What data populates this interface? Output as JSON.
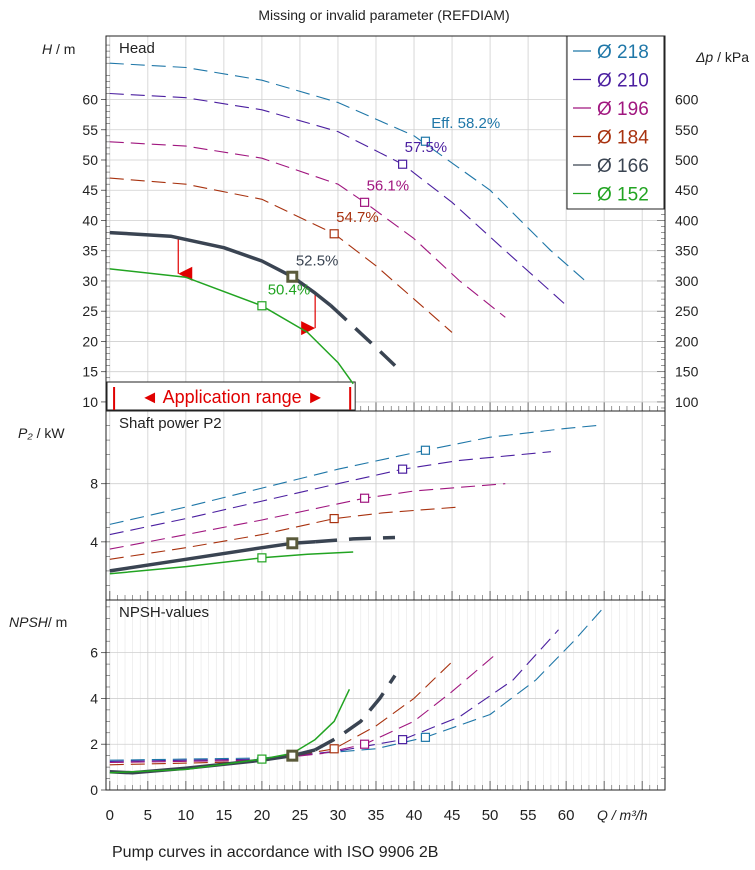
{
  "header": {
    "message": "Missing or invalid parameter (REFDIAM)"
  },
  "footer": {
    "caption": "Pump curves in accordance with ISO 9906 2B"
  },
  "axes": {
    "x_label": "Q / m³/h",
    "head_label_var": "H",
    "head_label_unit": " / m",
    "dp_label_var": "Δp",
    "dp_label_unit": " / kPa",
    "power_label_var": "P₂",
    "power_label_unit": " / kW",
    "npsh_label_var": "NPSH",
    "npsh_label_unit": "/ m"
  },
  "chart_data": {
    "type": "line",
    "colors": {
      "218": "#1f77a8",
      "210": "#4b1fa0",
      "196": "#a0167f",
      "184": "#a8320f",
      "166": "#3a4452",
      "152": "#22a422"
    },
    "legend": [
      {
        "key": "218",
        "label": "Ø 218"
      },
      {
        "key": "210",
        "label": "Ø 210"
      },
      {
        "key": "196",
        "label": "Ø 196"
      },
      {
        "key": "184",
        "label": "Ø 184"
      },
      {
        "key": "166",
        "label": "Ø 166"
      },
      {
        "key": "152",
        "label": "Ø 152"
      }
    ],
    "panels": [
      {
        "id": "head",
        "title": "Head",
        "x_range": [
          -0.5,
          73
        ],
        "y_range": [
          8.5,
          70.5
        ],
        "y_ticks": [
          10,
          15,
          20,
          25,
          30,
          35,
          40,
          45,
          50,
          55,
          60
        ],
        "y2_ticks": [
          100,
          150,
          200,
          250,
          300,
          350,
          400,
          450,
          500,
          550,
          600
        ],
        "series": [
          {
            "key": "218",
            "dashed": true,
            "width": 1.1,
            "points": [
              [
                0,
                66
              ],
              [
                10,
                65.3
              ],
              [
                20,
                63.2
              ],
              [
                30,
                59.5
              ],
              [
                40,
                54
              ],
              [
                50,
                45
              ],
              [
                58,
                35
              ],
              [
                63,
                29.5
              ]
            ]
          },
          {
            "key": "210",
            "dashed": true,
            "width": 1.1,
            "points": [
              [
                0,
                61
              ],
              [
                10,
                60.3
              ],
              [
                20,
                58.3
              ],
              [
                30,
                54.7
              ],
              [
                38.5,
                49.3
              ],
              [
                45,
                43
              ],
              [
                52,
                35
              ],
              [
                60,
                26
              ]
            ]
          },
          {
            "key": "196",
            "dashed": true,
            "width": 1.1,
            "points": [
              [
                0,
                53
              ],
              [
                10,
                52.3
              ],
              [
                20,
                50.3
              ],
              [
                30,
                46
              ],
              [
                33.5,
                43
              ],
              [
                40,
                37
              ],
              [
                46,
                30
              ],
              [
                52,
                24
              ]
            ]
          },
          {
            "key": "184",
            "dashed": true,
            "width": 1.1,
            "points": [
              [
                0,
                47
              ],
              [
                10,
                46
              ],
              [
                20,
                43.5
              ],
              [
                29.5,
                37.8
              ],
              [
                35,
                32.5
              ],
              [
                40,
                27
              ],
              [
                45,
                21.5
              ]
            ]
          },
          {
            "key": "166",
            "dashed": false,
            "width": 3.5,
            "points": [
              [
                0,
                38
              ],
              [
                8,
                37.4
              ],
              [
                15,
                35.5
              ],
              [
                20,
                33.3
              ],
              [
                24,
                30.7
              ],
              [
                27,
                28
              ],
              [
                29,
                26
              ]
            ]
          },
          {
            "key": "166",
            "dashed": true,
            "width": 3.5,
            "points": [
              [
                29,
                26
              ],
              [
                32,
                22.5
              ],
              [
                35,
                19
              ],
              [
                37.5,
                16
              ]
            ]
          },
          {
            "key": "152",
            "dashed": false,
            "width": 1.5,
            "points": [
              [
                0,
                32
              ],
              [
                10,
                30.6
              ],
              [
                20,
                25.9
              ],
              [
                26,
                21.5
              ],
              [
                30,
                16.5
              ],
              [
                32,
                13
              ]
            ]
          }
        ],
        "markers": [
          {
            "key": "218",
            "x": 41.5,
            "y": 53.1
          },
          {
            "key": "210",
            "x": 38.5,
            "y": 49.3
          },
          {
            "key": "196",
            "x": 33.5,
            "y": 43
          },
          {
            "key": "184",
            "x": 29.5,
            "y": 37.8
          },
          {
            "key": "166",
            "x": 24,
            "y": 30.7,
            "bold": true
          },
          {
            "key": "152",
            "x": 20,
            "y": 25.9
          }
        ],
        "efficiency_labels": [
          {
            "key": "218",
            "text": "Eff.  58.2%",
            "x": 42,
            "y": 55
          },
          {
            "key": "210",
            "text": "57.5%",
            "x": 38.5,
            "y": 51
          },
          {
            "key": "196",
            "text": "56.1%",
            "x": 33.5,
            "y": 44.6
          },
          {
            "key": "184",
            "text": "54.7%",
            "x": 29.5,
            "y": 39.4
          },
          {
            "key": "166",
            "text": "52.5%",
            "x": 24.2,
            "y": 32.2
          },
          {
            "key": "152",
            "text": "50.4%",
            "x": 20.5,
            "y": 27.4
          }
        ],
        "application_range": {
          "label": "◄ Application range ►",
          "x_min": 0.3,
          "x_max": 32
        },
        "range_markers": [
          {
            "x": 9,
            "y_top": 37.3,
            "y_bottom": 31.2
          },
          {
            "x": 27,
            "y_top": 27.9,
            "y_bottom": 22.2
          }
        ]
      },
      {
        "id": "power",
        "title": "Shaft power P2",
        "x_range": [
          -0.5,
          73
        ],
        "y_range": [
          0,
          13
        ],
        "y_ticks": [
          4,
          8
        ],
        "series": [
          {
            "key": "218",
            "dashed": true,
            "width": 1.1,
            "points": [
              [
                0,
                5.2
              ],
              [
                10,
                6.4
              ],
              [
                20,
                7.7
              ],
              [
                30,
                9
              ],
              [
                41.5,
                10.3
              ],
              [
                50,
                11.2
              ],
              [
                60,
                11.8
              ],
              [
                64,
                12
              ]
            ]
          },
          {
            "key": "210",
            "dashed": true,
            "width": 1.1,
            "points": [
              [
                0,
                4.5
              ],
              [
                10,
                5.6
              ],
              [
                20,
                6.8
              ],
              [
                30,
                8
              ],
              [
                38.5,
                9
              ],
              [
                46,
                9.6
              ],
              [
                58,
                10.2
              ]
            ]
          },
          {
            "key": "196",
            "dashed": true,
            "width": 1.1,
            "points": [
              [
                0,
                3.5
              ],
              [
                10,
                4.5
              ],
              [
                20,
                5.5
              ],
              [
                33.5,
                7
              ],
              [
                40,
                7.5
              ],
              [
                52,
                8
              ]
            ]
          },
          {
            "key": "184",
            "dashed": true,
            "width": 1.1,
            "points": [
              [
                0,
                2.8
              ],
              [
                10,
                3.6
              ],
              [
                20,
                4.5
              ],
              [
                29.5,
                5.6
              ],
              [
                36,
                6
              ],
              [
                46,
                6.4
              ]
            ]
          },
          {
            "key": "166",
            "dashed": false,
            "width": 3.5,
            "points": [
              [
                0,
                2
              ],
              [
                10,
                2.8
              ],
              [
                20,
                3.6
              ],
              [
                24,
                3.9
              ],
              [
                27,
                4
              ]
            ]
          },
          {
            "key": "166",
            "dashed": true,
            "width": 3.5,
            "points": [
              [
                27,
                4
              ],
              [
                32,
                4.2
              ],
              [
                37.5,
                4.3
              ]
            ]
          },
          {
            "key": "152",
            "dashed": false,
            "width": 1.5,
            "points": [
              [
                0,
                1.8
              ],
              [
                10,
                2.3
              ],
              [
                20,
                2.9
              ],
              [
                26,
                3.15
              ],
              [
                32,
                3.3
              ]
            ]
          }
        ],
        "markers": [
          {
            "key": "218",
            "x": 41.5,
            "y": 10.3
          },
          {
            "key": "210",
            "x": 38.5,
            "y": 9
          },
          {
            "key": "196",
            "x": 33.5,
            "y": 7
          },
          {
            "key": "184",
            "x": 29.5,
            "y": 5.6
          },
          {
            "key": "166",
            "x": 24,
            "y": 3.9,
            "bold": true
          },
          {
            "key": "152",
            "x": 20,
            "y": 2.9
          }
        ]
      },
      {
        "id": "npsh",
        "title": "NPSH-values",
        "x_range": [
          -0.5,
          73
        ],
        "y_range": [
          0,
          8.3
        ],
        "y_ticks": [
          0,
          2,
          4,
          6
        ],
        "x_ticks": [
          0,
          5,
          10,
          15,
          20,
          25,
          30,
          35,
          40,
          45,
          50,
          55,
          60
        ],
        "series": [
          {
            "key": "218",
            "dashed": true,
            "width": 1.1,
            "points": [
              [
                0,
                1.3
              ],
              [
                20,
                1.4
              ],
              [
                35,
                1.8
              ],
              [
                41.5,
                2.3
              ],
              [
                50,
                3.3
              ],
              [
                56,
                4.8
              ],
              [
                61,
                6.5
              ],
              [
                65,
                8
              ]
            ]
          },
          {
            "key": "210",
            "dashed": true,
            "width": 1.1,
            "points": [
              [
                0,
                1.25
              ],
              [
                20,
                1.35
              ],
              [
                30,
                1.7
              ],
              [
                38.5,
                2.2
              ],
              [
                46,
                3.2
              ],
              [
                53,
                4.8
              ],
              [
                59,
                7
              ]
            ]
          },
          {
            "key": "196",
            "dashed": true,
            "width": 1.1,
            "points": [
              [
                0,
                1.2
              ],
              [
                20,
                1.3
              ],
              [
                28,
                1.6
              ],
              [
                33.5,
                2
              ],
              [
                40,
                3
              ],
              [
                45,
                4.3
              ],
              [
                51,
                6
              ]
            ]
          },
          {
            "key": "184",
            "dashed": true,
            "width": 1.1,
            "points": [
              [
                0,
                1.1
              ],
              [
                20,
                1.25
              ],
              [
                29.5,
                1.8
              ],
              [
                35,
                2.8
              ],
              [
                40,
                4
              ],
              [
                45,
                5.6
              ]
            ]
          },
          {
            "key": "166",
            "dashed": false,
            "width": 3.5,
            "points": [
              [
                0,
                0.8
              ],
              [
                3,
                0.75
              ],
              [
                10,
                0.95
              ],
              [
                20,
                1.3
              ],
              [
                24,
                1.5
              ],
              [
                27,
                1.75
              ]
            ]
          },
          {
            "key": "166",
            "dashed": true,
            "width": 3.5,
            "points": [
              [
                27,
                1.75
              ],
              [
                30,
                2.3
              ],
              [
                33,
                3
              ],
              [
                35.5,
                4
              ],
              [
                37.5,
                5
              ]
            ]
          },
          {
            "key": "152",
            "dashed": false,
            "width": 1.5,
            "points": [
              [
                0,
                0.75
              ],
              [
                10,
                0.9
              ],
              [
                20,
                1.35
              ],
              [
                24,
                1.6
              ],
              [
                27,
                2.2
              ],
              [
                29.5,
                3
              ],
              [
                31.5,
                4.4
              ]
            ]
          }
        ],
        "markers": [
          {
            "key": "218",
            "x": 41.5,
            "y": 2.3
          },
          {
            "key": "210",
            "x": 38.5,
            "y": 2.2
          },
          {
            "key": "196",
            "x": 33.5,
            "y": 2
          },
          {
            "key": "184",
            "x": 29.5,
            "y": 1.8
          },
          {
            "key": "166",
            "x": 24,
            "y": 1.5,
            "bold": true
          },
          {
            "key": "152",
            "x": 20,
            "y": 1.35
          }
        ]
      }
    ]
  }
}
